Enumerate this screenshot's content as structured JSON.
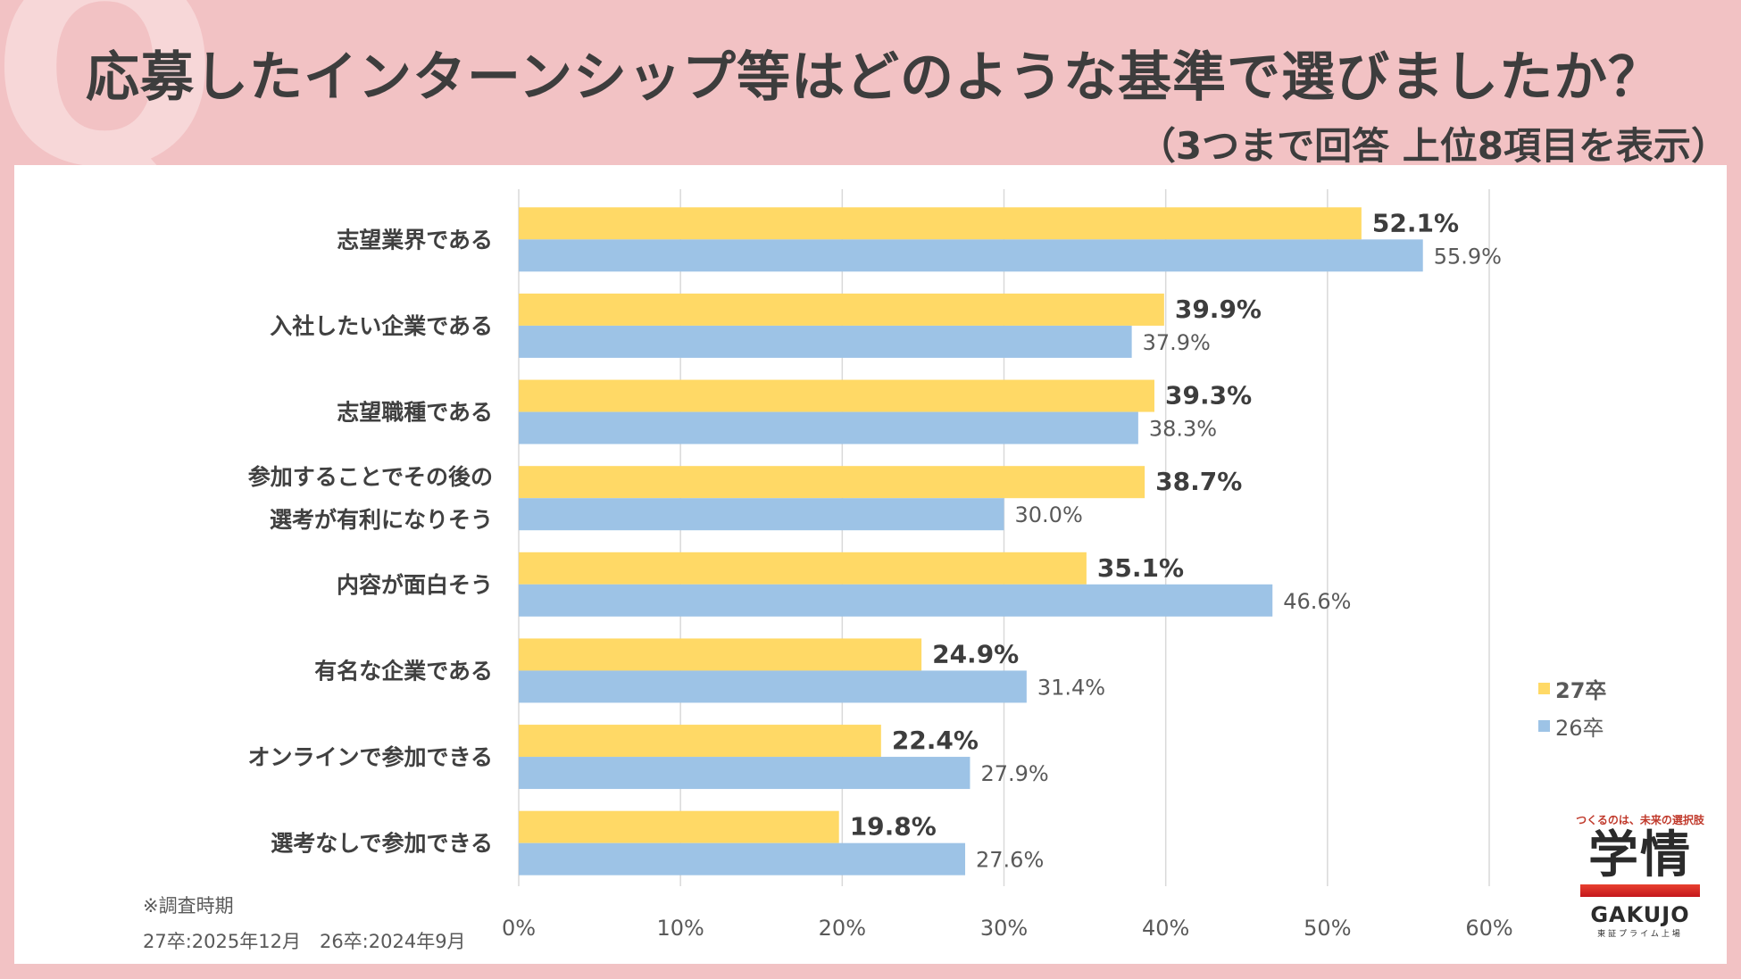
{
  "header": {
    "q_mark": "Q",
    "title": "応募したインターンシップ等はどのような基準で選びましたか？",
    "subtitle": "（3つまで回答 上位8項目を表示）"
  },
  "colors": {
    "series_27": "#ffd966",
    "series_26": "#9dc3e6",
    "grid": "#d9d9d9",
    "text": "#404040"
  },
  "chart_data": {
    "type": "bar",
    "orientation": "horizontal",
    "categories": [
      [
        "志望業界である"
      ],
      [
        "入社したい企業である"
      ],
      [
        "志望職種である"
      ],
      [
        "参加することでその後の",
        "選考が有利になりそう"
      ],
      [
        "内容が面白そう"
      ],
      [
        "有名な企業である"
      ],
      [
        "オンラインで参加できる"
      ],
      [
        "選考なしで参加できる"
      ]
    ],
    "series": [
      {
        "name": "27卒",
        "values": [
          52.1,
          39.9,
          39.3,
          38.7,
          35.1,
          24.9,
          22.4,
          19.8
        ],
        "value_labels": [
          "52.1%",
          "39.9%",
          "39.3%",
          "38.7%",
          "35.1%",
          "24.9%",
          "22.4%",
          "19.8%"
        ]
      },
      {
        "name": "26卒",
        "values": [
          55.9,
          37.9,
          38.3,
          30.0,
          46.6,
          31.4,
          27.9,
          27.6
        ],
        "value_labels": [
          "55.9%",
          "37.9%",
          "38.3%",
          "30.0%",
          "46.6%",
          "31.4%",
          "27.9%",
          "27.6%"
        ]
      }
    ],
    "xlim": [
      0,
      60
    ],
    "x_ticks": [
      0,
      10,
      20,
      30,
      40,
      50,
      60
    ],
    "x_tick_labels": [
      "0%",
      "10%",
      "20%",
      "30%",
      "40%",
      "50%",
      "60%"
    ],
    "grid": true,
    "legend_position": "right"
  },
  "legend": {
    "items": [
      {
        "label": "27卒"
      },
      {
        "label": "26卒"
      }
    ]
  },
  "note": {
    "heading": "※調査時期",
    "period": "27卒:2025年12月　26卒:2024年9月"
  },
  "logo": {
    "tagline": "つくるのは、未来の選択肢",
    "kanji": "学情",
    "wordmark": "GAKUJO",
    "sub": "東証プライム上場"
  }
}
